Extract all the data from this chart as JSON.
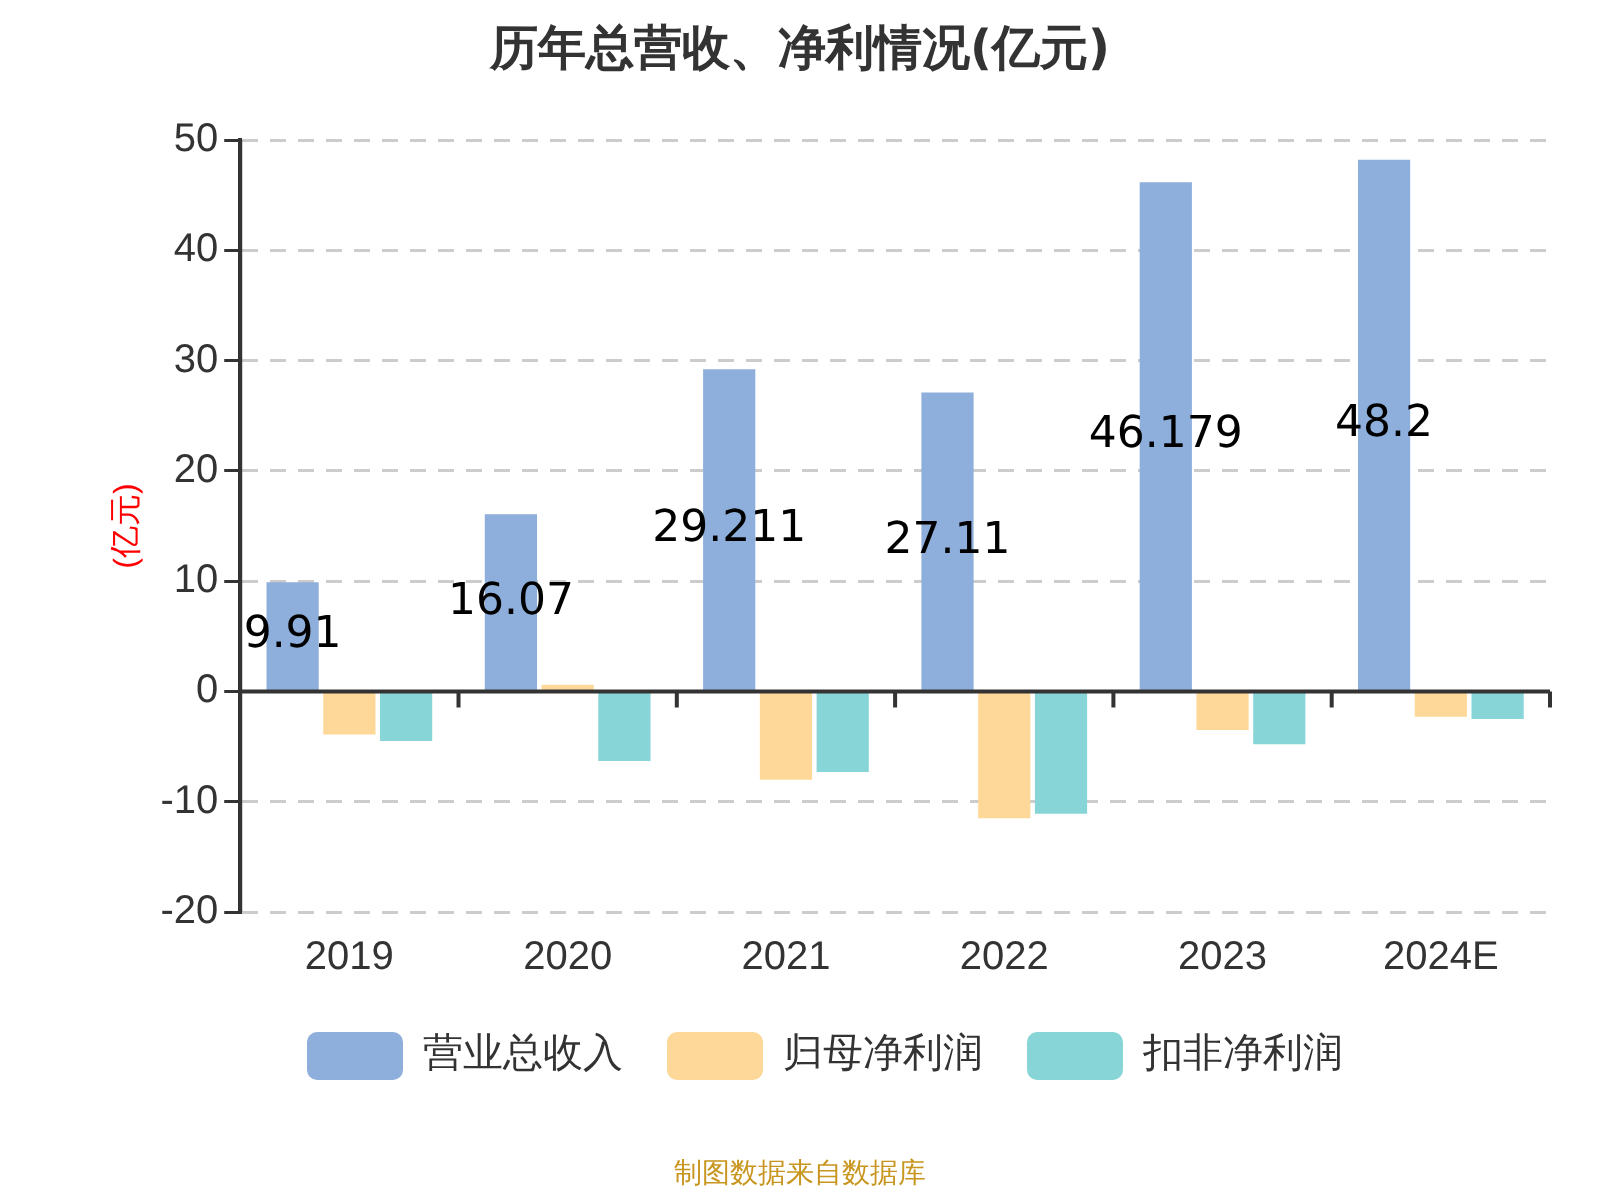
{
  "chart_data": {
    "type": "bar",
    "title": "历年总营收、净利情况(亿元)",
    "ylabel": "(亿元)",
    "categories": [
      "2019",
      "2020",
      "2021",
      "2022",
      "2023",
      "2024E"
    ],
    "series": [
      {
        "name": "营业总收入",
        "color": "#8eafdb",
        "values": [
          9.91,
          16.07,
          29.211,
          27.11,
          46.179,
          48.2
        ],
        "value_labels": [
          "9.91",
          "16.07",
          "29.211",
          "27.11",
          "46.179",
          "48.2"
        ]
      },
      {
        "name": "归母净利润",
        "color": "#fed898",
        "values": [
          -3.9,
          0.6,
          -8.0,
          -11.5,
          -3.5,
          -2.3
        ]
      },
      {
        "name": "扣非净利润",
        "color": "#88d5d8",
        "values": [
          -4.5,
          -6.3,
          -7.3,
          -11.1,
          -4.8,
          -2.5
        ]
      }
    ],
    "ylim": [
      -20,
      50
    ],
    "yticks": [
      -20,
      -10,
      0,
      10,
      20,
      30,
      40,
      50
    ],
    "grid": "y",
    "legend": "bottom",
    "annotations": [
      "制图数据来自数据库"
    ]
  }
}
